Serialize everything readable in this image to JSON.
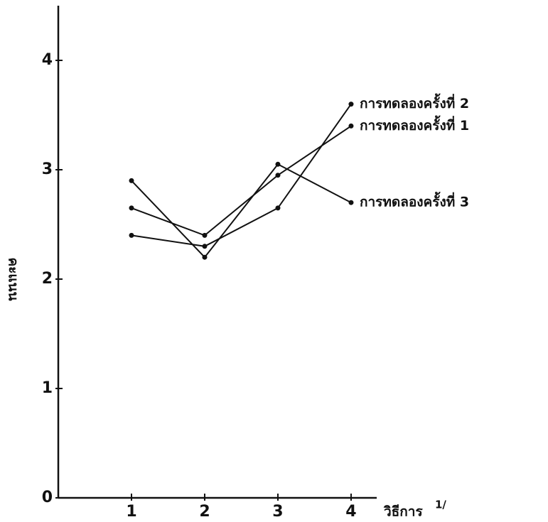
{
  "chart_data": {
    "type": "line",
    "y_label": "คะแนน",
    "x_label": "วิธีการ",
    "x_label_note": "1/",
    "x": [
      1,
      2,
      3,
      4
    ],
    "xlim": [
      0,
      4.35
    ],
    "xticks": [
      1,
      2,
      3,
      4
    ],
    "ylim": [
      0,
      4.5
    ],
    "yticks": [
      0,
      1,
      2,
      3,
      4
    ],
    "series": [
      {
        "name": "การทดลองครั้งที่ 2",
        "color": "#111111",
        "values": [
          2.4,
          2.3,
          2.65,
          3.6
        ]
      },
      {
        "name": "การทดลองครั้งที่ 1",
        "color": "#111111",
        "values": [
          2.65,
          2.4,
          2.95,
          3.4
        ]
      },
      {
        "name": "การทดลองครั้งที่ 3",
        "color": "#111111",
        "values": [
          2.9,
          2.2,
          3.05,
          2.7
        ]
      }
    ]
  }
}
